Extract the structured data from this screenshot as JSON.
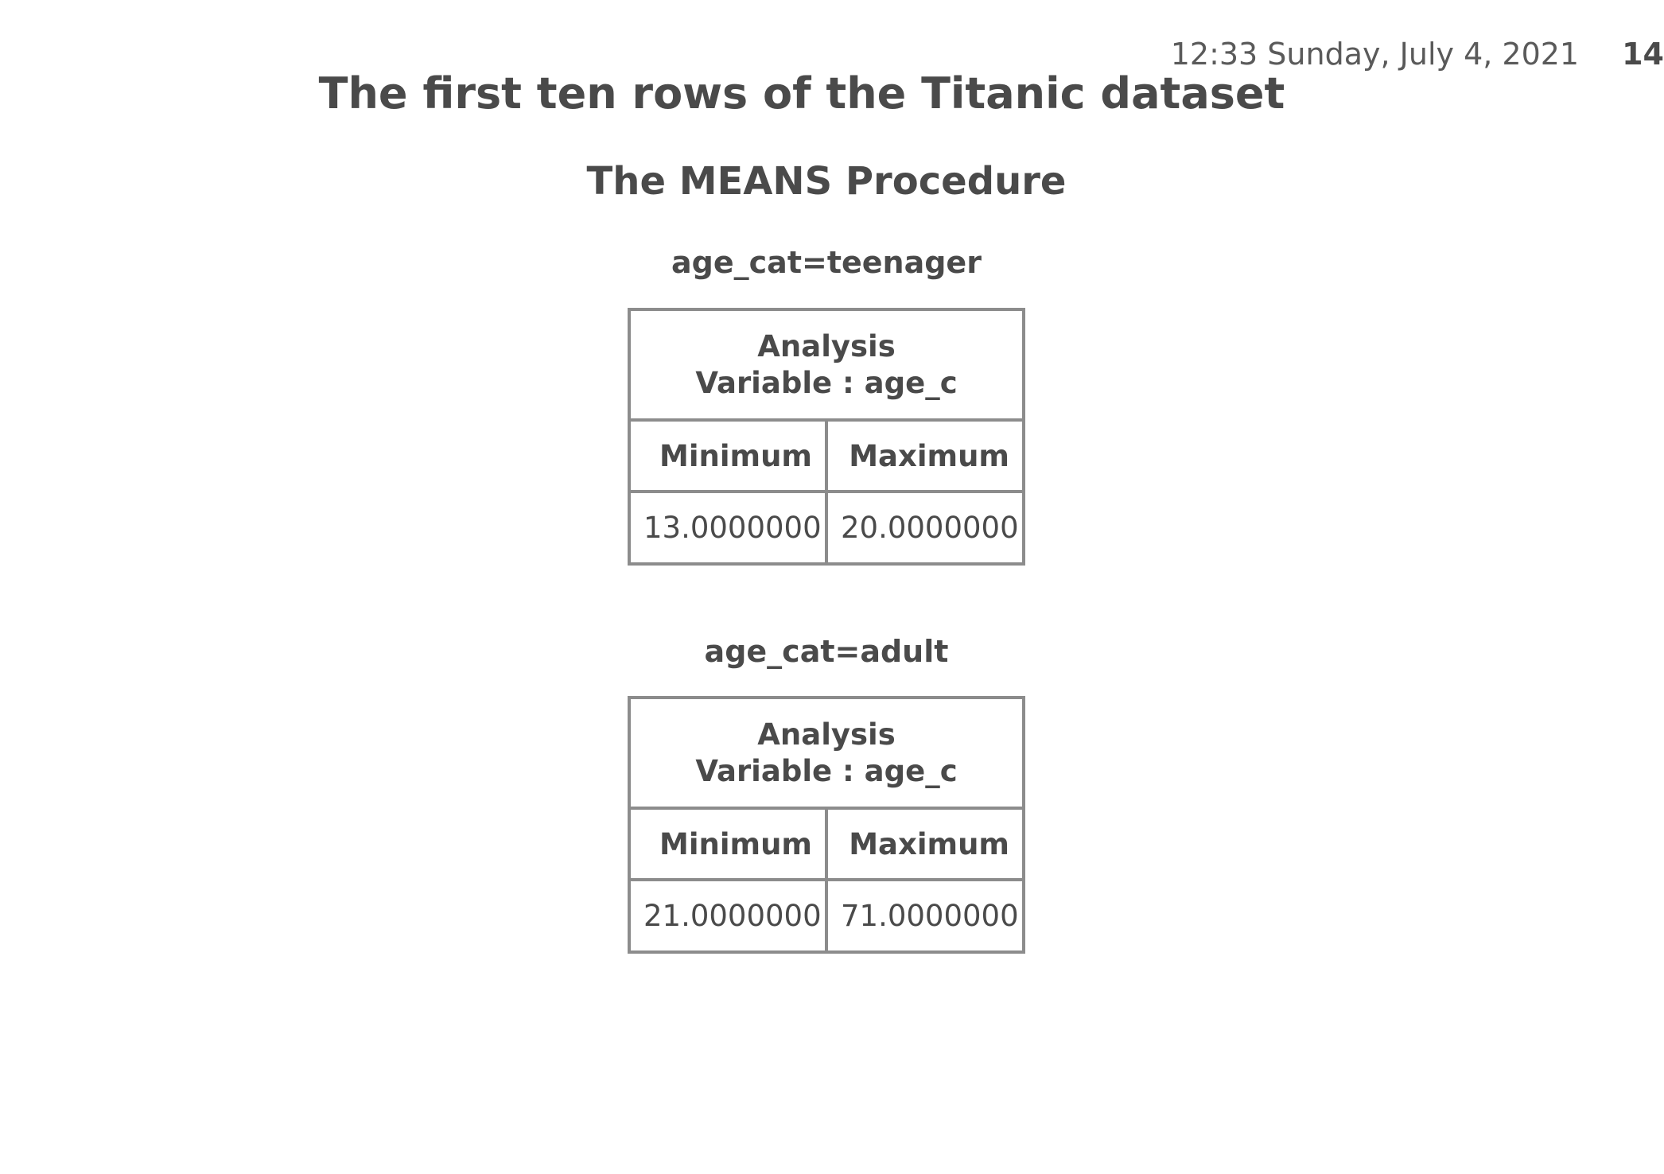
{
  "header": {
    "timestamp": "12:33 Sunday, July 4, 2021",
    "page_number": "14"
  },
  "title": "The first ten rows of the Titanic dataset",
  "procedure_title": "The MEANS Procedure",
  "groups": [
    {
      "label": "age_cat=teenager",
      "analysis_label_line1": "Analysis",
      "analysis_label_line2": "Variable : age_c",
      "columns": [
        "Minimum",
        "Maximum"
      ],
      "values": [
        "13.0000000",
        "20.0000000"
      ]
    },
    {
      "label": "age_cat=adult",
      "analysis_label_line1": "Analysis",
      "analysis_label_line2": "Variable : age_c",
      "columns": [
        "Minimum",
        "Maximum"
      ],
      "values": [
        "21.0000000",
        "71.0000000"
      ]
    }
  ]
}
